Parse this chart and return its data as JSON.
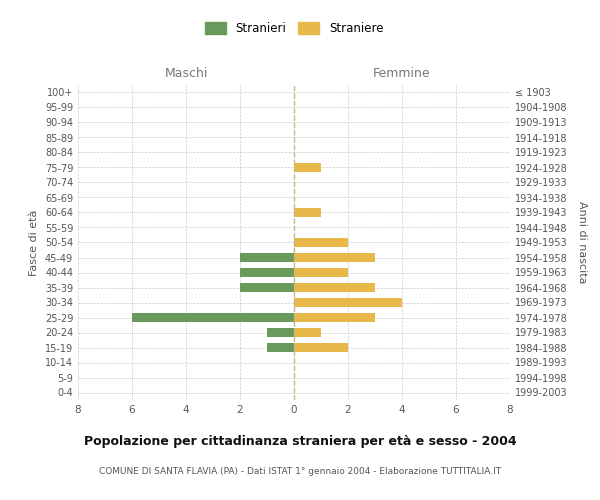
{
  "age_groups": [
    "0-4",
    "5-9",
    "10-14",
    "15-19",
    "20-24",
    "25-29",
    "30-34",
    "35-39",
    "40-44",
    "45-49",
    "50-54",
    "55-59",
    "60-64",
    "65-69",
    "70-74",
    "75-79",
    "80-84",
    "85-89",
    "90-94",
    "95-99",
    "100+"
  ],
  "birth_years": [
    "1999-2003",
    "1994-1998",
    "1989-1993",
    "1984-1988",
    "1979-1983",
    "1974-1978",
    "1969-1973",
    "1964-1968",
    "1959-1963",
    "1954-1958",
    "1949-1953",
    "1944-1948",
    "1939-1943",
    "1934-1938",
    "1929-1933",
    "1924-1928",
    "1919-1923",
    "1914-1918",
    "1909-1913",
    "1904-1908",
    "≤ 1903"
  ],
  "males": [
    0,
    0,
    0,
    1,
    1,
    6,
    0,
    2,
    2,
    2,
    0,
    0,
    0,
    0,
    0,
    0,
    0,
    0,
    0,
    0,
    0
  ],
  "females": [
    0,
    0,
    0,
    2,
    1,
    3,
    4,
    3,
    2,
    3,
    2,
    0,
    1,
    0,
    0,
    1,
    0,
    0,
    0,
    0,
    0
  ],
  "male_color": "#6a9a5b",
  "female_color": "#e8b84b",
  "title": "Popolazione per cittadinanza straniera per età e sesso - 2004",
  "subtitle": "COMUNE DI SANTA FLAVIA (PA) - Dati ISTAT 1° gennaio 2004 - Elaborazione TUTTITALIA.IT",
  "legend_male": "Stranieri",
  "legend_female": "Straniere",
  "ylabel_left": "Fasce di età",
  "ylabel_right": "Anni di nascita",
  "xlabel_left": "Maschi",
  "xlabel_right": "Femmine",
  "xlim": 8,
  "bg_color": "#ffffff",
  "grid_color": "#cccccc",
  "grid_color_dashed": "#bbbb88"
}
